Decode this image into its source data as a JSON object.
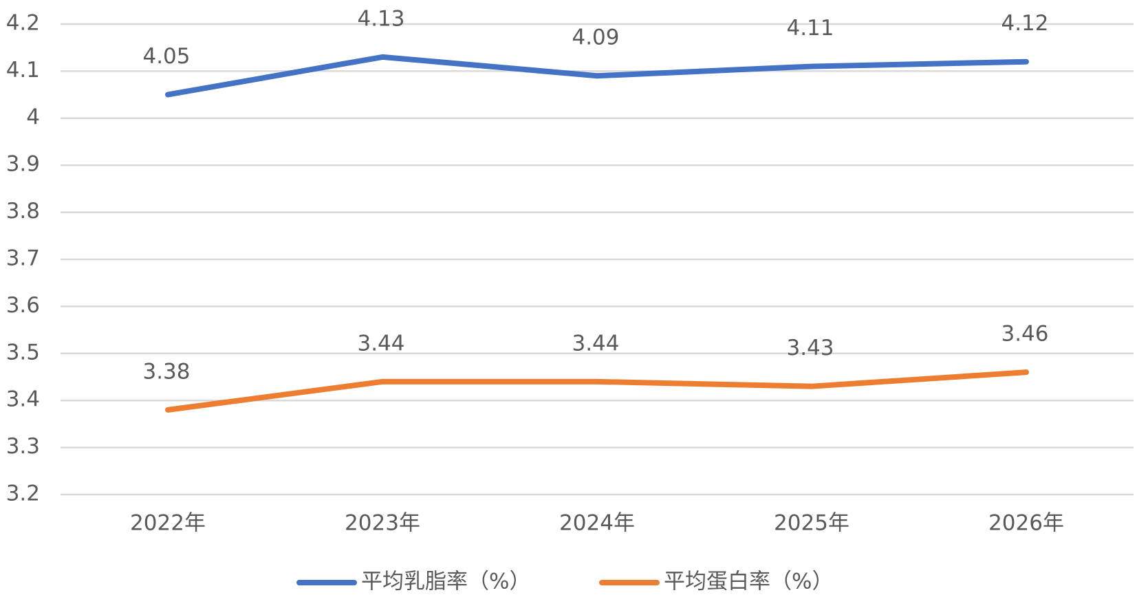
{
  "chart_data": {
    "type": "line",
    "categories": [
      "2022年",
      "2023年",
      "2024年",
      "2025年",
      "2026年"
    ],
    "series": [
      {
        "name": "平均乳脂率（%）",
        "color": "#4472c4",
        "values": [
          4.05,
          4.13,
          4.09,
          4.11,
          4.12
        ]
      },
      {
        "name": "平均蛋白率（%）",
        "color": "#ed7d31",
        "values": [
          3.38,
          3.44,
          3.44,
          3.43,
          3.46
        ]
      }
    ],
    "ylim": [
      3.2,
      4.2
    ],
    "yticks": [
      3.2,
      3.3,
      3.4,
      3.5,
      3.6,
      3.7,
      3.8,
      3.9,
      4,
      4.1,
      4.2
    ],
    "grid": true,
    "legend": "bottom"
  }
}
